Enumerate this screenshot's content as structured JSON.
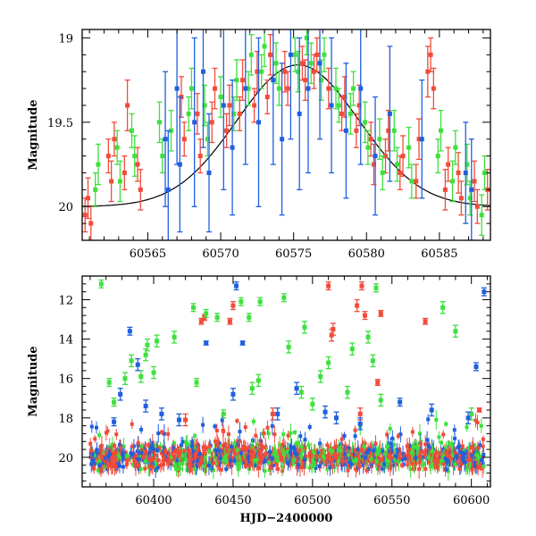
{
  "chart_data": [
    {
      "type": "scatter",
      "title": "",
      "xlabel": "",
      "ylabel": "Magnitude",
      "xlim": [
        60560.5,
        60588.5
      ],
      "ylim": [
        20.2,
        18.95
      ],
      "y_inverted": true,
      "xticks": [
        60565,
        60570,
        60575,
        60580,
        60585
      ],
      "yticks": [
        19,
        19.5,
        20
      ],
      "ytick_labels": [
        "19",
        "19.5",
        "20"
      ],
      "grid": false,
      "legend": "none",
      "model_curve": {
        "center": 60575.3,
        "peak_mag": 19.16,
        "base_mag": 20.0,
        "width_days": 4.2,
        "color": "#000000"
      },
      "series": [
        {
          "color": "#f24b3a",
          "points": [
            [
              60560.7,
              20.05
            ],
            [
              60560.9,
              19.95
            ],
            [
              60561.1,
              20.1
            ],
            [
              60562.3,
              19.7
            ],
            [
              60562.5,
              19.85
            ],
            [
              60562.7,
              19.6
            ],
            [
              60563.4,
              19.8
            ],
            [
              60563.6,
              19.4
            ],
            [
              60564.3,
              19.75
            ],
            [
              60564.5,
              19.9
            ],
            [
              60567.3,
              19.35
            ],
            [
              60567.5,
              19.6
            ],
            [
              60568.4,
              19.45
            ],
            [
              60568.6,
              19.7
            ],
            [
              60569.4,
              19.5
            ],
            [
              60569.6,
              19.3
            ],
            [
              60570.4,
              19.55
            ],
            [
              60570.6,
              19.4
            ],
            [
              60571.3,
              19.45
            ],
            [
              60571.5,
              19.25
            ],
            [
              60572.3,
              19.4
            ],
            [
              60572.5,
              19.2
            ],
            [
              60573.2,
              19.35
            ],
            [
              60573.4,
              19.1
            ],
            [
              60574.4,
              19.2
            ],
            [
              60574.6,
              19.3
            ],
            [
              60575.6,
              19.15
            ],
            [
              60575.8,
              19.25
            ],
            [
              60576.4,
              19.2
            ],
            [
              60576.6,
              19.1
            ],
            [
              60577.4,
              19.3
            ],
            [
              60578.3,
              19.45
            ],
            [
              60578.5,
              19.35
            ],
            [
              60579.3,
              19.55
            ],
            [
              60579.5,
              19.4
            ],
            [
              60580.3,
              19.6
            ],
            [
              60580.5,
              19.75
            ],
            [
              60581.3,
              19.7
            ],
            [
              60581.5,
              19.55
            ],
            [
              60582.3,
              19.8
            ],
            [
              60582.5,
              19.7
            ],
            [
              60583.4,
              19.85
            ],
            [
              60583.6,
              19.6
            ],
            [
              60584.2,
              19.2
            ],
            [
              60584.4,
              19.1
            ],
            [
              60584.6,
              19.3
            ],
            [
              60585.4,
              19.9
            ],
            [
              60585.6,
              19.75
            ],
            [
              60586.3,
              19.8
            ],
            [
              60586.5,
              19.95
            ],
            [
              60587.4,
              19.85
            ],
            [
              60587.6,
              20.0
            ],
            [
              60588.3,
              19.9
            ]
          ],
          "errors": [
            0.1,
            0.12,
            0.1,
            0.1,
            0.12,
            0.1,
            0.1,
            0.15,
            0.1,
            0.12,
            0.12,
            0.1,
            0.12,
            0.1,
            0.12,
            0.12,
            0.1,
            0.12,
            0.1,
            0.12,
            0.1,
            0.12,
            0.1,
            0.12,
            0.12,
            0.1,
            0.1,
            0.12,
            0.1,
            0.1,
            0.12,
            0.1,
            0.12,
            0.1,
            0.12,
            0.1,
            0.12,
            0.1,
            0.12,
            0.1,
            0.12,
            0.1,
            0.12,
            0.15,
            0.1,
            0.12,
            0.12,
            0.1,
            0.12,
            0.1,
            0.12,
            0.1,
            0.12
          ]
        },
        {
          "color": "#3ee03e",
          "points": [
            [
              60561.4,
              19.9
            ],
            [
              60561.6,
              19.75
            ],
            [
              60562.9,
              19.65
            ],
            [
              60563.1,
              19.85
            ],
            [
              60563.9,
              19.55
            ],
            [
              60564.1,
              19.7
            ],
            [
              60565.8,
              19.5
            ],
            [
              60566.0,
              19.7
            ],
            [
              60566.6,
              19.55
            ],
            [
              60567.8,
              19.45
            ],
            [
              60568.0,
              19.3
            ],
            [
              60568.9,
              19.4
            ],
            [
              60569.1,
              19.6
            ],
            [
              60570.0,
              19.35
            ],
            [
              60570.9,
              19.45
            ],
            [
              60571.1,
              19.25
            ],
            [
              60571.9,
              19.3
            ],
            [
              60572.1,
              19.1
            ],
            [
              60572.8,
              19.2
            ],
            [
              60573.0,
              19.05
            ],
            [
              60573.8,
              19.15
            ],
            [
              60574.0,
              19.3
            ],
            [
              60575.1,
              19.1
            ],
            [
              60575.3,
              19.2
            ],
            [
              60575.9,
              19.0
            ],
            [
              60576.2,
              19.15
            ],
            [
              60576.9,
              19.25
            ],
            [
              60577.1,
              19.1
            ],
            [
              60577.9,
              19.3
            ],
            [
              60578.1,
              19.4
            ],
            [
              60578.9,
              19.45
            ],
            [
              60579.1,
              19.3
            ],
            [
              60579.9,
              19.5
            ],
            [
              60580.1,
              19.65
            ],
            [
              60580.9,
              19.6
            ],
            [
              60581.1,
              19.8
            ],
            [
              60581.9,
              19.55
            ],
            [
              60582.1,
              19.75
            ],
            [
              60582.9,
              19.65
            ],
            [
              60583.1,
              19.85
            ],
            [
              60584.9,
              19.7
            ],
            [
              60585.1,
              19.55
            ],
            [
              60585.9,
              19.85
            ],
            [
              60586.1,
              19.65
            ],
            [
              60586.9,
              19.75
            ],
            [
              60587.1,
              19.95
            ],
            [
              60587.9,
              20.05
            ],
            [
              60588.1,
              19.8
            ]
          ],
          "errors": [
            0.1,
            0.12,
            0.1,
            0.12,
            0.1,
            0.12,
            0.12,
            0.1,
            0.12,
            0.1,
            0.12,
            0.12,
            0.1,
            0.12,
            0.1,
            0.12,
            0.1,
            0.12,
            0.1,
            0.12,
            0.12,
            0.1,
            0.1,
            0.12,
            0.1,
            0.12,
            0.12,
            0.1,
            0.12,
            0.1,
            0.12,
            0.1,
            0.12,
            0.1,
            0.12,
            0.1,
            0.12,
            0.1,
            0.12,
            0.1,
            0.1,
            0.12,
            0.12,
            0.1,
            0.12,
            0.1,
            0.12,
            0.1
          ]
        },
        {
          "color": "#1f5fe0",
          "points": [
            [
              60566.2,
              19.6
            ],
            [
              60566.4,
              19.9
            ],
            [
              60567.0,
              19.3
            ],
            [
              60567.2,
              19.75
            ],
            [
              60568.2,
              19.5
            ],
            [
              60568.8,
              19.2
            ],
            [
              60569.2,
              19.8
            ],
            [
              60570.2,
              19.4
            ],
            [
              60570.8,
              19.65
            ],
            [
              60571.7,
              19.3
            ],
            [
              60572.6,
              19.5
            ],
            [
              60573.6,
              19.25
            ],
            [
              60574.2,
              19.6
            ],
            [
              60574.8,
              19.1
            ],
            [
              60575.4,
              19.45
            ],
            [
              60576.0,
              19.3
            ],
            [
              60576.8,
              19.15
            ],
            [
              60577.6,
              19.4
            ],
            [
              60578.6,
              19.55
            ],
            [
              60579.6,
              19.3
            ],
            [
              60580.6,
              19.7
            ],
            [
              60581.6,
              19.45
            ],
            [
              60583.8,
              19.6
            ],
            [
              60586.8,
              19.8
            ],
            [
              60587.2,
              19.9
            ]
          ],
          "errors": [
            0.4,
            0.35,
            0.45,
            0.4,
            0.5,
            0.45,
            0.35,
            0.5,
            0.4,
            0.45,
            0.5,
            0.5,
            0.45,
            0.5,
            0.45,
            0.5,
            0.45,
            0.4,
            0.4,
            0.45,
            0.35,
            0.4,
            0.35,
            0.3,
            0.3
          ]
        }
      ]
    },
    {
      "type": "scatter",
      "title": "",
      "xlabel": "HJD−2400000",
      "ylabel": "Magnitude",
      "xlim": [
        60355,
        60612
      ],
      "ylim": [
        21.5,
        10.8
      ],
      "y_inverted": true,
      "xticks": [
        60400,
        60450,
        60500,
        60550,
        60600
      ],
      "yticks": [
        12,
        14,
        16,
        18,
        20
      ],
      "ytick_labels": [
        "12",
        "14",
        "16",
        "18",
        "20"
      ],
      "grid": false,
      "legend": "none",
      "dense_band": {
        "mag": 20.0,
        "spread": 0.75,
        "xrange": [
          60360,
          60608
        ],
        "description_colors": [
          "#1f5fe0",
          "#3ee03e",
          "#f24b3a"
        ]
      },
      "series": [
        {
          "color": "#f24b3a",
          "points": [
            [
              60430,
              13.1
            ],
            [
              60432,
              12.9
            ],
            [
              60448,
              13.1
            ],
            [
              60450,
              12.3
            ],
            [
              60510,
              11.3
            ],
            [
              60512,
              13.8
            ],
            [
              60513,
              13.5
            ],
            [
              60528,
              12.3
            ],
            [
              60531,
              11.3
            ],
            [
              60533,
              12.8
            ],
            [
              60541,
              16.2
            ],
            [
              60543,
              12.7
            ],
            [
              60571,
              13.1
            ],
            [
              60605,
              17.6
            ],
            [
              60530,
              17.8
            ],
            [
              60420,
              18.1
            ],
            [
              60475,
              17.8
            ]
          ],
          "errors": [
            0.15,
            0.15,
            0.15,
            0.2,
            0.2,
            0.3,
            0.3,
            0.3,
            0.2,
            0.2,
            0.15,
            0.15,
            0.15,
            0.1,
            0.3,
            0.3,
            0.3
          ]
        },
        {
          "color": "#3ee03e",
          "points": [
            [
              60367,
              11.2
            ],
            [
              60372,
              16.2
            ],
            [
              60375,
              17.2
            ],
            [
              60386,
              15.1
            ],
            [
              60392,
              15.9
            ],
            [
              60395,
              14.8
            ],
            [
              60396,
              14.3
            ],
            [
              60400,
              15.7
            ],
            [
              60402,
              14.1
            ],
            [
              60413,
              13.9
            ],
            [
              60425,
              12.4
            ],
            [
              60427,
              16.2
            ],
            [
              60433,
              12.7
            ],
            [
              60440,
              12.9
            ],
            [
              60444,
              17.8
            ],
            [
              60455,
              12.1
            ],
            [
              60460,
              12.9
            ],
            [
              60462,
              16.5
            ],
            [
              60466,
              16.1
            ],
            [
              60467,
              12.1
            ],
            [
              60482,
              11.9
            ],
            [
              60485,
              14.4
            ],
            [
              60493,
              16.7
            ],
            [
              60495,
              13.4
            ],
            [
              60500,
              17.3
            ],
            [
              60505,
              15.9
            ],
            [
              60510,
              15.2
            ],
            [
              60522,
              16.7
            ],
            [
              60525,
              14.5
            ],
            [
              60535,
              13.9
            ],
            [
              60538,
              15.1
            ],
            [
              60540,
              11.4
            ],
            [
              60543,
              17.1
            ],
            [
              60582,
              12.4
            ],
            [
              60590,
              13.6
            ],
            [
              60600,
              17.8
            ],
            [
              60382,
              16.0
            ]
          ],
          "errors": [
            0.2,
            0.2,
            0.2,
            0.3,
            0.3,
            0.3,
            0.3,
            0.3,
            0.3,
            0.3,
            0.2,
            0.2,
            0.2,
            0.2,
            0.2,
            0.2,
            0.2,
            0.3,
            0.3,
            0.2,
            0.2,
            0.3,
            0.3,
            0.3,
            0.3,
            0.3,
            0.3,
            0.3,
            0.3,
            0.3,
            0.3,
            0.2,
            0.3,
            0.3,
            0.3,
            0.3,
            0.3
          ]
        },
        {
          "color": "#1f5fe0",
          "points": [
            [
              60375,
              18.2
            ],
            [
              60379,
              16.8
            ],
            [
              60385,
              13.6
            ],
            [
              60390,
              15.3
            ],
            [
              60395,
              17.4
            ],
            [
              60416,
              18.1
            ],
            [
              60433,
              14.2
            ],
            [
              60452,
              11.3
            ],
            [
              60456,
              14.2
            ],
            [
              60450,
              16.8
            ],
            [
              60478,
              17.8
            ],
            [
              60490,
              16.5
            ],
            [
              60508,
              17.7
            ],
            [
              60515,
              18.0
            ],
            [
              60530,
              18.3
            ],
            [
              60555,
              17.2
            ],
            [
              60575,
              17.6
            ],
            [
              60598,
              18.0
            ],
            [
              60603,
              15.4
            ],
            [
              60608,
              11.6
            ],
            [
              60405,
              17.8
            ]
          ],
          "errors": [
            0.2,
            0.3,
            0.2,
            0.3,
            0.3,
            0.3,
            0.1,
            0.2,
            0.1,
            0.3,
            0.3,
            0.3,
            0.3,
            0.3,
            0.3,
            0.2,
            0.3,
            0.3,
            0.2,
            0.2,
            0.3
          ]
        }
      ]
    }
  ]
}
